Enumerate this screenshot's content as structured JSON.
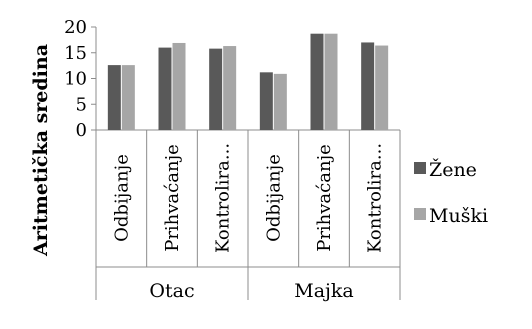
{
  "chart_data": {
    "type": "bar",
    "ylabel": "Aritmetička sredina",
    "ylim": [
      0,
      20
    ],
    "yticks": [
      0,
      5,
      10,
      15,
      20
    ],
    "grid": false,
    "legend_position": "right",
    "groups": [
      {
        "label": "Otac",
        "categories": [
          "Odbijanje",
          "Prihvaćanje",
          "Kontrolira..."
        ]
      },
      {
        "label": "Majka",
        "categories": [
          "Odbijanje",
          "Prihvaćanje",
          "Kontrolira..."
        ]
      }
    ],
    "series": [
      {
        "name": "Žene",
        "color": "#595959",
        "values": [
          12.6,
          16.0,
          15.8,
          11.2,
          18.7,
          17.0
        ]
      },
      {
        "name": "Muški",
        "color": "#a6a6a6",
        "values": [
          12.6,
          16.9,
          16.3,
          10.9,
          18.7,
          16.4
        ]
      }
    ]
  }
}
